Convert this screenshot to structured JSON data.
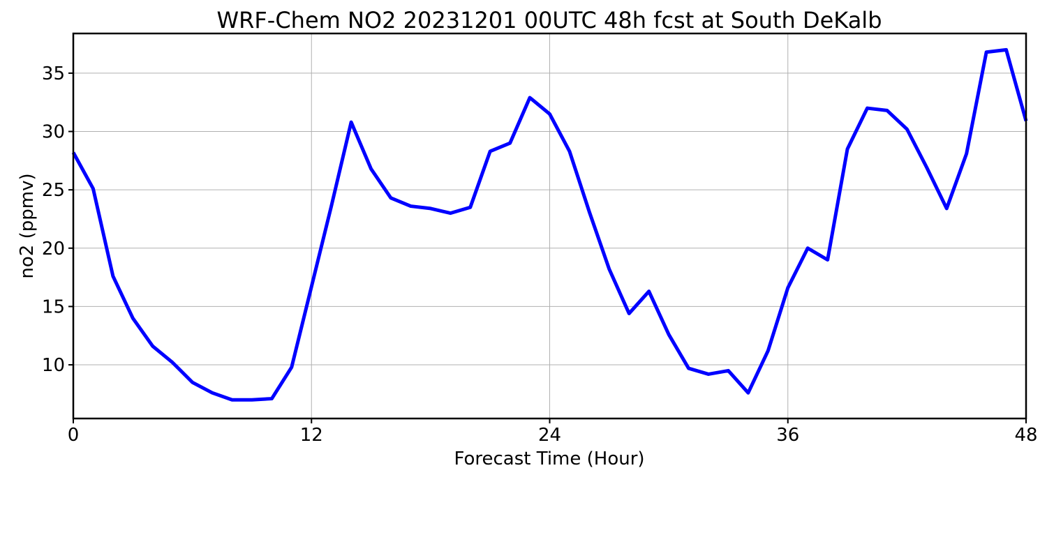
{
  "chart_data": {
    "type": "line",
    "title": "WRF-Chem NO2  20231201 00UTC 48h fcst at South DeKalb",
    "xlabel": "Forecast Time (Hour)",
    "ylabel": "no2  (ppmv)",
    "xlim": [
      0,
      48
    ],
    "ylim": [
      5.4,
      38.4
    ],
    "xticks": [
      0,
      12,
      24,
      36,
      48
    ],
    "xtick_labels": [
      "0",
      "12",
      "24",
      "36",
      "48"
    ],
    "yticks": [
      10,
      15,
      20,
      25,
      30,
      35
    ],
    "ytick_labels": [
      "10",
      "15",
      "20",
      "25",
      "30",
      "35"
    ],
    "grid": true,
    "legend": "none",
    "series": [
      {
        "color": "#0000ff",
        "x": [
          0,
          1,
          2,
          3,
          4,
          5,
          6,
          7,
          8,
          9,
          10,
          11,
          12,
          13,
          14,
          15,
          16,
          17,
          18,
          19,
          20,
          21,
          22,
          23,
          24,
          25,
          26,
          27,
          28,
          29,
          30,
          31,
          32,
          33,
          34,
          35,
          36,
          37,
          38,
          39,
          40,
          41,
          42,
          43,
          44,
          45,
          46,
          47,
          48
        ],
        "values": [
          28.2,
          25.1,
          17.6,
          14.0,
          11.6,
          10.2,
          8.5,
          7.6,
          7.0,
          7.0,
          7.1,
          9.8,
          16.7,
          23.6,
          30.8,
          26.8,
          24.3,
          23.6,
          23.4,
          23.0,
          23.5,
          28.3,
          29.0,
          32.9,
          31.5,
          28.3,
          23.1,
          18.2,
          14.4,
          16.3,
          12.6,
          9.7,
          9.2,
          9.5,
          7.6,
          11.2,
          16.6,
          20.0,
          19.0,
          28.5,
          32.0,
          31.8,
          30.2,
          26.9,
          23.4,
          28.1,
          36.8,
          37.0,
          30.9
        ]
      }
    ]
  }
}
